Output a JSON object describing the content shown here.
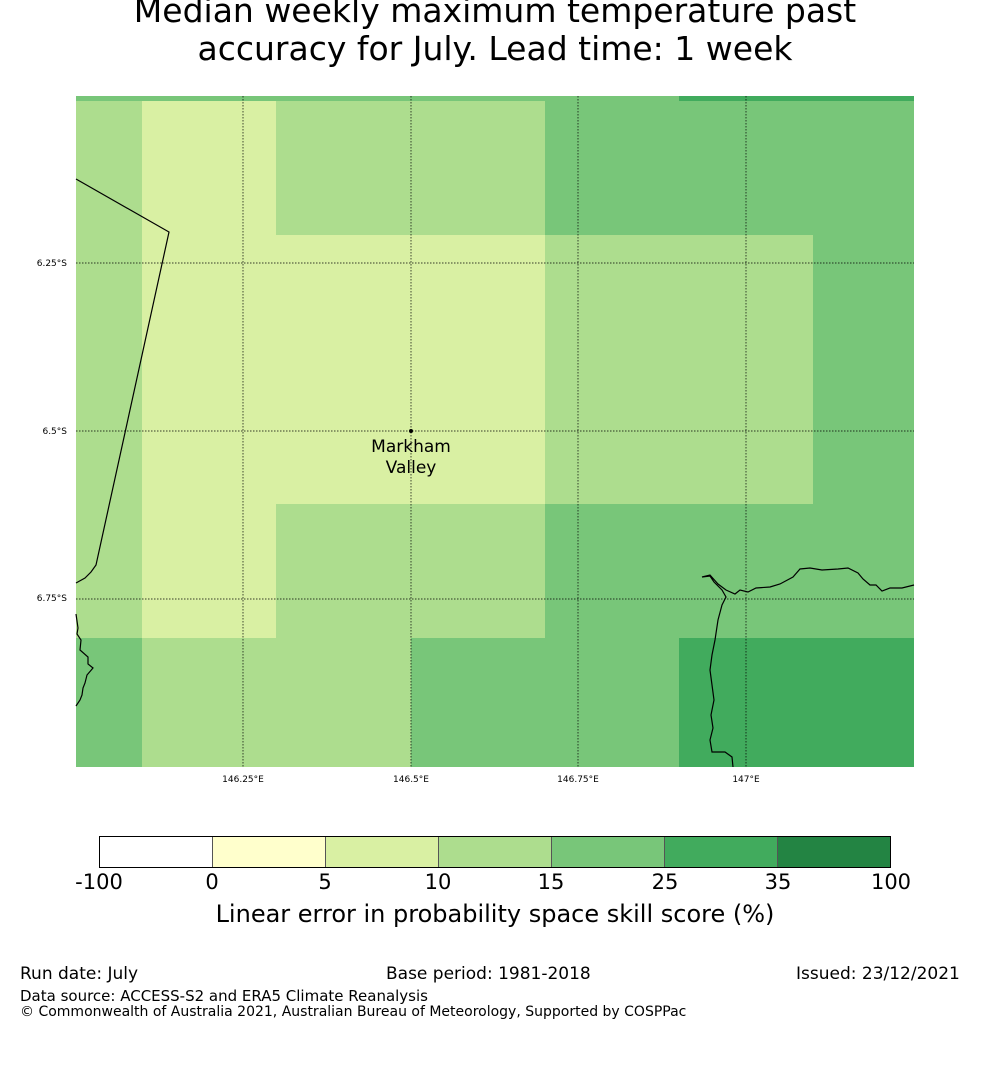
{
  "title": {
    "line1": "Median weekly maximum temperature past",
    "line2": "accuracy for July. Lead time: 1 week"
  },
  "map": {
    "location_label_line1": "Markham",
    "location_label_line2": "Valley",
    "lat_labels": [
      "6.25°S",
      "6.5°S",
      "6.75°S"
    ],
    "lon_labels": [
      "146.25°E",
      "146.5°E",
      "146.75°E",
      "147°E"
    ]
  },
  "legend": {
    "label": "Linear error in probability space skill score (%)",
    "ticks": [
      "-100",
      "0",
      "5",
      "10",
      "15",
      "25",
      "35",
      "100"
    ],
    "colors": [
      "#ffffff",
      "#ffffcc",
      "#d9f0a3",
      "#addd8e",
      "#78c679",
      "#41ab5d",
      "#238443"
    ]
  },
  "footer": {
    "run_date": "Run date: July",
    "base_period": "Base period: 1981-2018",
    "issued": "Issued: 23/12/2021",
    "data_source": "Data source: ACCESS-S2 and ERA5 Climate Reanalysis",
    "copyright": "© Commonwealth of Australia 2021, Australian Bureau of Meteorology, Supported by COSPPac"
  }
}
